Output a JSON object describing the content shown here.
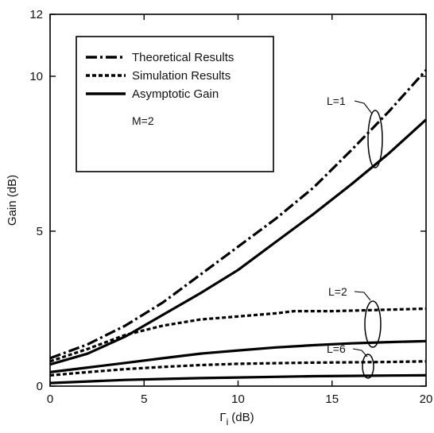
{
  "chart_data": {
    "type": "line",
    "title": "",
    "xlabel": "Γ",
    "xlabel_sub": "i",
    "xlabel_unit": "(dB)",
    "ylabel": "Gain (dB)",
    "xlim": [
      0,
      20
    ],
    "ylim": [
      0,
      12
    ],
    "xticks": [
      0,
      5,
      10,
      15,
      20
    ],
    "yticks": [
      0,
      5,
      10,
      12
    ],
    "grid": false,
    "legend_position": "top-left",
    "legend": [
      {
        "label": "Theoretical Results",
        "style": "dashdot"
      },
      {
        "label": "Simulation Results",
        "style": "dotted"
      },
      {
        "label": "Asymptotic Gain",
        "style": "solid"
      }
    ],
    "annotations": [
      "M=2",
      "L=1",
      "L=2",
      "L=6"
    ],
    "series": [
      {
        "group": "L=1",
        "style": "dashdot",
        "x": [
          0,
          2,
          4,
          6,
          8,
          10,
          12,
          14,
          16,
          18,
          20
        ],
        "y": [
          0.9,
          1.35,
          1.95,
          2.7,
          3.6,
          4.5,
          5.4,
          6.4,
          7.6,
          8.85,
          10.2
        ]
      },
      {
        "group": "L=1",
        "style": "solid",
        "x": [
          0,
          2,
          4,
          6,
          8,
          10,
          12,
          14,
          16,
          18,
          20
        ],
        "y": [
          0.7,
          1.05,
          1.6,
          2.3,
          3.0,
          3.75,
          4.65,
          5.55,
          6.5,
          7.5,
          8.6
        ]
      },
      {
        "group": "L=2",
        "style": "dotted",
        "x": [
          0,
          2,
          4,
          6,
          8,
          10,
          12,
          13,
          15,
          17,
          20
        ],
        "y": [
          0.8,
          1.2,
          1.65,
          1.95,
          2.15,
          2.25,
          2.35,
          2.42,
          2.42,
          2.45,
          2.5
        ]
      },
      {
        "group": "L=2",
        "style": "solid",
        "x": [
          0,
          2,
          4,
          6,
          8,
          10,
          12,
          14,
          16,
          18,
          20
        ],
        "y": [
          0.45,
          0.6,
          0.75,
          0.9,
          1.05,
          1.15,
          1.25,
          1.32,
          1.38,
          1.42,
          1.45
        ]
      },
      {
        "group": "L=6",
        "style": "dotted",
        "x": [
          0,
          2,
          4,
          6,
          8,
          10,
          12,
          14,
          16,
          18,
          20
        ],
        "y": [
          0.35,
          0.45,
          0.55,
          0.62,
          0.68,
          0.72,
          0.74,
          0.76,
          0.77,
          0.78,
          0.8
        ]
      },
      {
        "group": "L=6",
        "style": "solid",
        "x": [
          0,
          2,
          4,
          6,
          8,
          10,
          12,
          14,
          16,
          18,
          20
        ],
        "y": [
          0.1,
          0.15,
          0.2,
          0.23,
          0.26,
          0.28,
          0.3,
          0.32,
          0.33,
          0.34,
          0.35
        ]
      }
    ]
  }
}
